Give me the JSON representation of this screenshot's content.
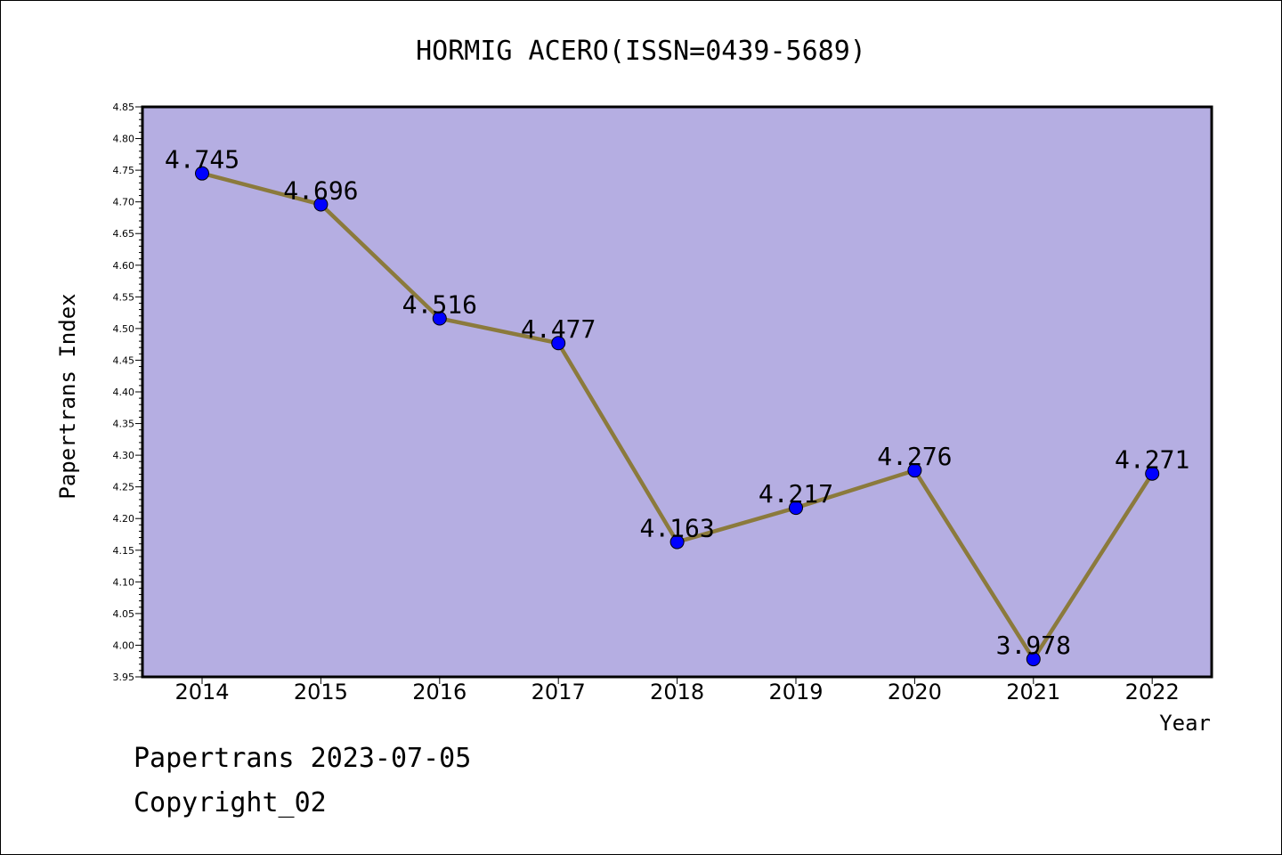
{
  "chart_data": {
    "type": "line",
    "title": "HORMIG ACERO(ISSN=0439-5689)",
    "xlabel": "Year",
    "ylabel": "Papertrans Index",
    "categories": [
      "2014",
      "2015",
      "2016",
      "2017",
      "2018",
      "2019",
      "2020",
      "2021",
      "2022"
    ],
    "series": [
      {
        "values": [
          4.745,
          4.696,
          4.516,
          4.477,
          4.163,
          4.217,
          4.276,
          3.978,
          4.271
        ],
        "value_labels": [
          "4.745",
          "4.696",
          "4.516",
          "4.477",
          "4.163",
          "4.217",
          "4.276",
          "3.978",
          "4.271"
        ]
      }
    ],
    "ylim": [
      3.95,
      4.85
    ],
    "yticks": [
      "3.95",
      "4.00",
      "4.05",
      "4.10",
      "4.15",
      "4.20",
      "4.25",
      "4.30",
      "4.35",
      "4.40",
      "4.45",
      "4.50",
      "4.55",
      "4.60",
      "4.65",
      "4.70",
      "4.75",
      "4.80",
      "4.85"
    ],
    "grid": false,
    "colors": {
      "plot_background": "#b5aee2",
      "line": "#8b7a3c",
      "marker": "#0000ff"
    }
  },
  "footer": {
    "line1": "Papertrans 2023-07-05",
    "line2": "Copyright_02"
  }
}
